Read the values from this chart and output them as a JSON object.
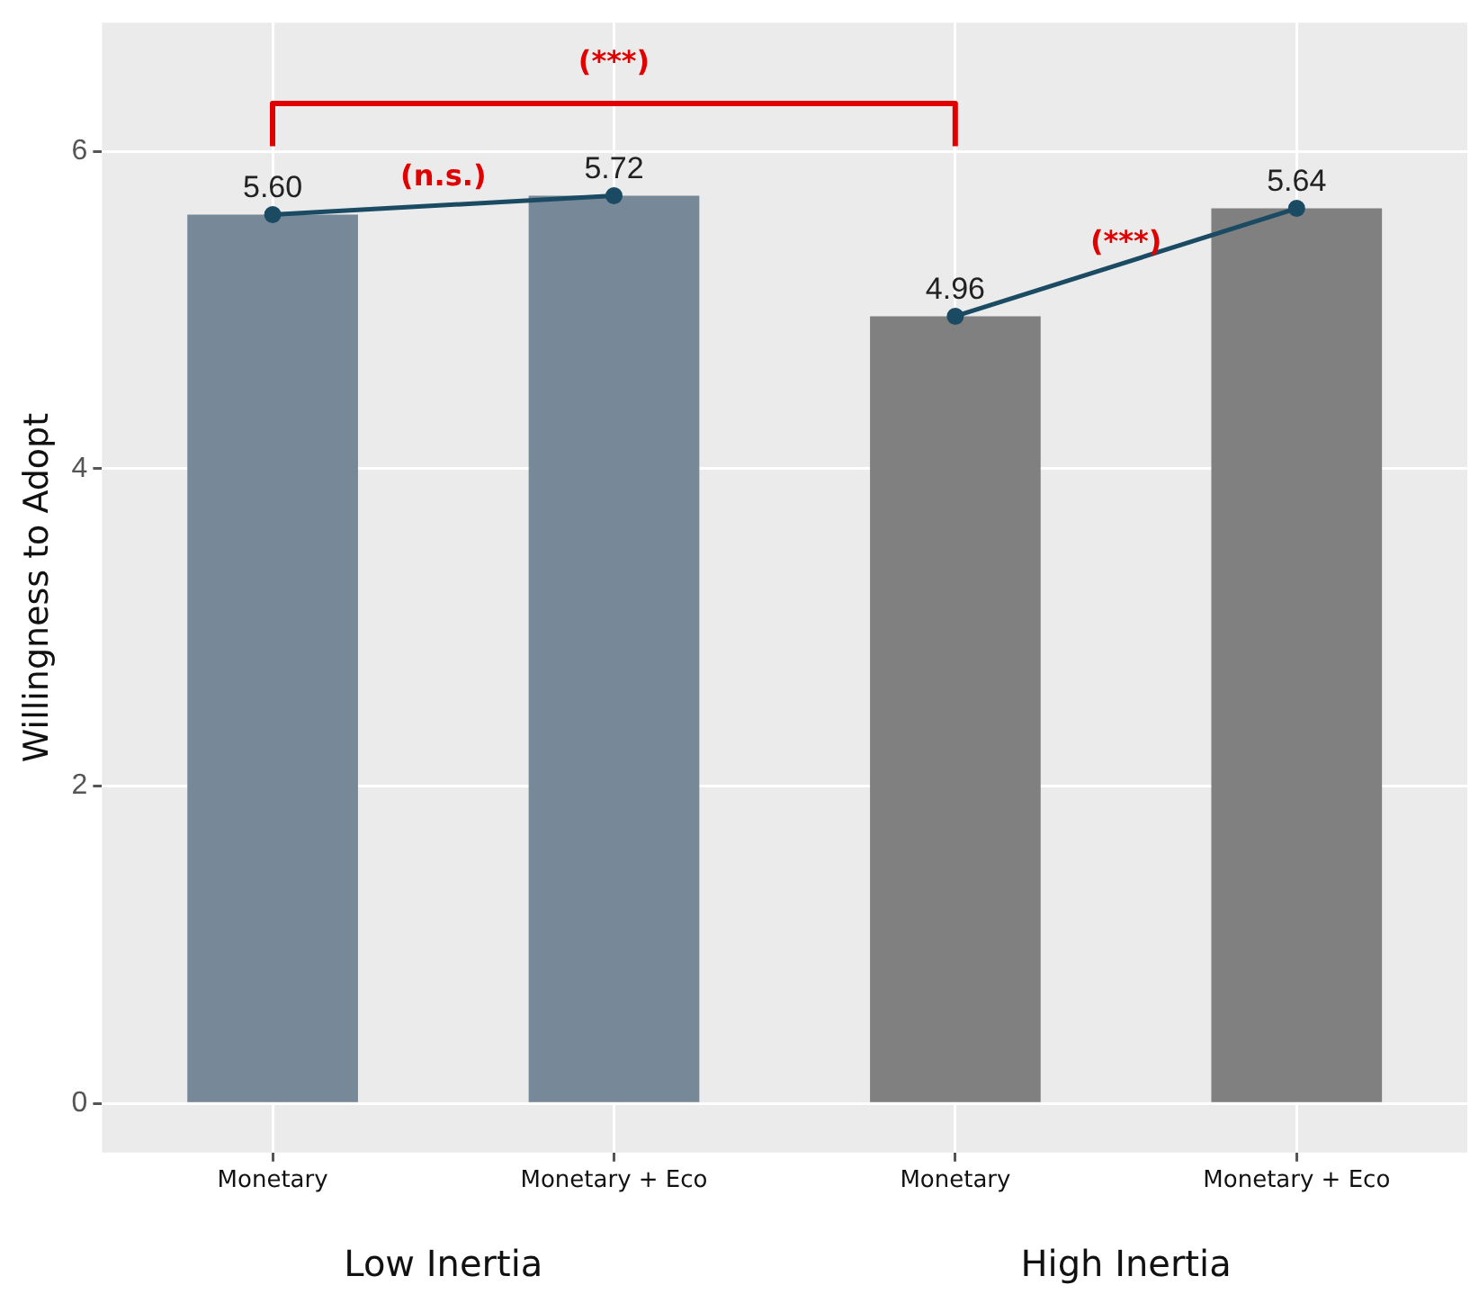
{
  "chart_data": {
    "type": "bar",
    "ylabel": "Willingness to Adopt",
    "categories": [
      "Monetary",
      "Monetary + Eco",
      "Monetary",
      "Monetary + Eco"
    ],
    "series": [
      {
        "colors": [
          "#778899",
          "#778899",
          "#808080",
          "#808080"
        ],
        "values": [
          5.6,
          5.72,
          4.96,
          5.64
        ],
        "value_labels": [
          "5.60",
          "5.72",
          "4.96",
          "5.64"
        ]
      },
      {
        "type": "line",
        "color": "#1b4a63",
        "values": [
          5.6,
          5.72,
          null,
          null
        ]
      },
      {
        "type": "line",
        "color": "#1b4a63",
        "values": [
          null,
          null,
          4.96,
          5.64
        ]
      }
    ],
    "ylim": [
      -0.31,
      6.81
    ],
    "yticks": [
      0,
      2,
      4,
      6
    ],
    "grid": true,
    "legend": false,
    "marker": "circle",
    "line_style": "solid",
    "annotations": [
      "(***)",
      "(n.s.)",
      "(***)",
      "Low Inertia",
      "High Inertia"
    ]
  }
}
